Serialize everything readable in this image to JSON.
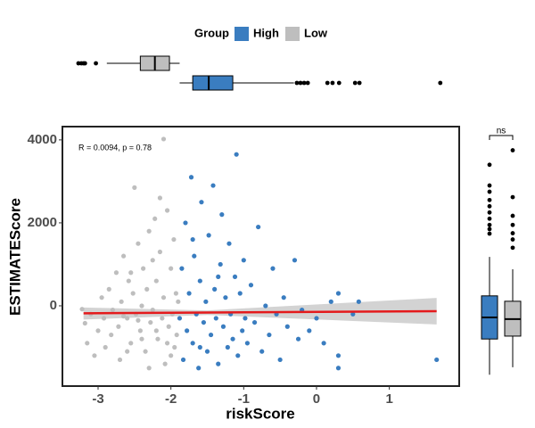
{
  "chart_data": [
    {
      "type": "scatter",
      "xlabel": "riskScore",
      "ylabel": "ESTIMATEScore",
      "annotation": "R = 0.0094, p = 0.78",
      "legend_title": "Group",
      "xlim": [
        -3.49,
        1.96
      ],
      "ylim": [
        -1935,
        4320
      ],
      "xticks": [
        -3,
        -2,
        -1,
        0,
        1
      ],
      "yticks": [
        0,
        2000,
        4000
      ],
      "series": [
        {
          "name": "High",
          "color": "#3a7dc0",
          "x": [
            -1.88,
            -1.85,
            -1.83,
            -1.8,
            -1.78,
            -1.75,
            -1.72,
            -1.7,
            -1.68,
            -1.65,
            -1.62,
            -1.6,
            -1.58,
            -1.55,
            -1.52,
            -1.5,
            -1.48,
            -1.45,
            -1.42,
            -1.4,
            -1.38,
            -1.35,
            -1.32,
            -1.3,
            -1.28,
            -1.25,
            -1.22,
            -1.2,
            -1.18,
            -1.15,
            -1.12,
            -1.1,
            -1.08,
            -1.05,
            -1.02,
            -1.0,
            -0.98,
            -0.95,
            -0.9,
            -0.85,
            -0.8,
            -0.75,
            -0.7,
            -0.65,
            -0.6,
            -0.55,
            -0.5,
            -0.45,
            -0.4,
            -0.3,
            -0.25,
            -0.2,
            -0.1,
            0.0,
            0.1,
            0.2,
            0.3,
            0.3,
            0.3,
            0.5,
            0.58,
            1.65,
            -1.6,
            -1.35,
            -1.7
          ],
          "y": [
            -300,
            900,
            -1300,
            2000,
            -600,
            300,
            3100,
            -900,
            1200,
            -200,
            -1500,
            600,
            2500,
            -400,
            100,
            -1100,
            1700,
            -700,
            2900,
            400,
            -300,
            -1400,
            1000,
            2200,
            -500,
            200,
            -1000,
            1500,
            -200,
            -800,
            700,
            3650,
            -1200,
            300,
            -600,
            1100,
            -300,
            -900,
            500,
            -400,
            1900,
            -1100,
            0,
            -700,
            900,
            -200,
            -1300,
            200,
            -500,
            1100,
            -800,
            -100,
            -600,
            -300,
            -900,
            100,
            -1200,
            -1500,
            300,
            -200,
            100,
            -1300,
            -1000,
            700,
            1600
          ]
        },
        {
          "name": "Low",
          "color": "#bebebe",
          "x": [
            -3.22,
            -3.18,
            -3.15,
            -3.1,
            -3.05,
            -3.0,
            -2.95,
            -2.92,
            -2.9,
            -2.85,
            -2.82,
            -2.8,
            -2.75,
            -2.72,
            -2.7,
            -2.68,
            -2.65,
            -2.6,
            -2.58,
            -2.55,
            -2.52,
            -2.5,
            -2.48,
            -2.45,
            -2.42,
            -2.4,
            -2.38,
            -2.35,
            -2.33,
            -2.3,
            -2.28,
            -2.25,
            -2.22,
            -2.2,
            -2.18,
            -2.15,
            -2.12,
            -2.1,
            -2.1,
            -2.08,
            -2.05,
            -2.03,
            -2.0,
            -1.98,
            -1.96,
            -1.95,
            -1.93,
            -1.92,
            -1.9,
            -2.6,
            -2.4,
            -2.2,
            -2.0,
            -2.3,
            -2.15,
            -2.45,
            -2.65,
            -2.55,
            -2.05,
            -2.25
          ],
          "y": [
            -80,
            -420,
            -900,
            -200,
            -1200,
            -600,
            200,
            -300,
            -1000,
            400,
            -700,
            -100,
            800,
            -500,
            -1300,
            100,
            1200,
            -300,
            600,
            -900,
            300,
            2850,
            -200,
            1500,
            -600,
            0,
            900,
            -1100,
            400,
            1800,
            -400,
            -100,
            2100,
            600,
            -800,
            1300,
            -300,
            4020,
            200,
            -1400,
            2300,
            -500,
            900,
            -200,
            1600,
            -1000,
            300,
            -700,
            100,
            -1100,
            -800,
            -600,
            -1200,
            -1500,
            2600,
            -350,
            -250,
            800,
            -900,
            1100
          ]
        }
      ],
      "fit": {
        "color": "#e41a1c",
        "x": [
          -3.2,
          1.65
        ],
        "y": [
          -180,
          -130
        ]
      },
      "band": {
        "color": "#c8c8c8",
        "x": [
          -3.2,
          -1.5,
          1.65
        ],
        "lower": [
          -330,
          -220,
          -450
        ],
        "upper": [
          -40,
          -110,
          190
        ]
      }
    },
    {
      "type": "boxplot",
      "orient": "horizontal",
      "xlim": [
        -3.49,
        1.96
      ],
      "groups": [
        {
          "name": "Low",
          "color": "#bebebe",
          "min": -2.88,
          "q1": -2.42,
          "median": -2.22,
          "q3": -2.02,
          "max": -1.88,
          "outliers": [
            -3.27,
            -3.23,
            -3.2,
            -3.18,
            -3.03
          ]
        },
        {
          "name": "High",
          "color": "#3a7dc0",
          "min": -1.88,
          "q1": -1.7,
          "median": -1.48,
          "q3": -1.15,
          "max": -0.31,
          "outliers": [
            -0.27,
            -0.22,
            -0.17,
            -0.12,
            0.15,
            0.22,
            0.31,
            0.53,
            0.59,
            1.7
          ]
        }
      ]
    },
    {
      "type": "boxplot",
      "orient": "vertical",
      "ylim": [
        -1935,
        4320
      ],
      "annotation": "ns",
      "groups": [
        {
          "name": "High",
          "color": "#3a7dc0",
          "min": -1660,
          "q1": -800,
          "median": -280,
          "q3": 240,
          "max": 1180,
          "outliers": [
            3400,
            2900,
            2750,
            2550,
            2400,
            2250,
            2100,
            1950,
            1850,
            1740
          ]
        },
        {
          "name": "Low",
          "color": "#bebebe",
          "min": -1480,
          "q1": -730,
          "median": -320,
          "q3": 110,
          "max": 880,
          "outliers": [
            3750,
            2620,
            2170,
            1950,
            1750,
            1600,
            1400
          ]
        }
      ]
    }
  ]
}
